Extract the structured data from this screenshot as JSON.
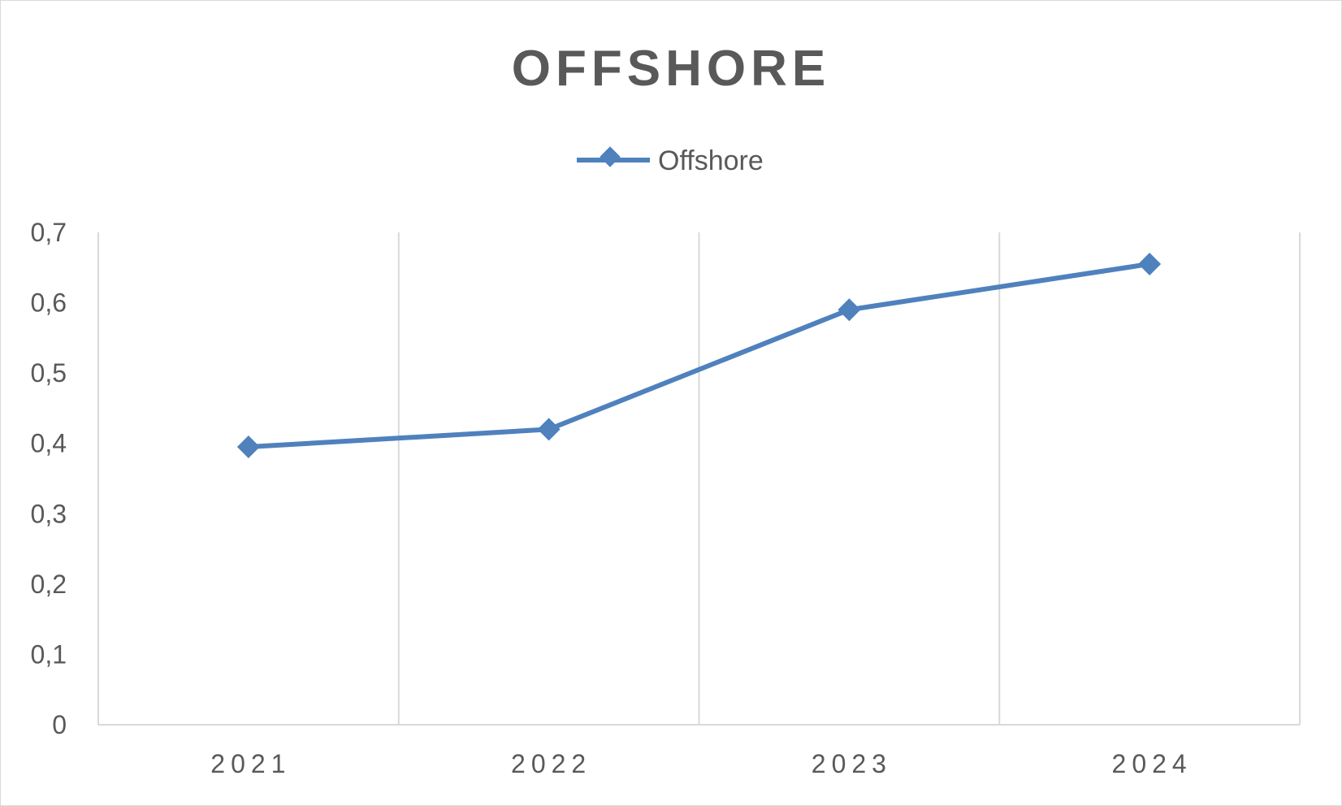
{
  "chart_data": {
    "type": "line",
    "title": "OFFSHORE",
    "categories": [
      "2021",
      "2022",
      "2023",
      "2024"
    ],
    "series": [
      {
        "name": "Offshore",
        "values": [
          0.395,
          0.42,
          0.59,
          0.655
        ],
        "color": "#4f81bd",
        "marker": "diamond"
      }
    ],
    "ylim": [
      0,
      0.7
    ],
    "yticks": [
      "0",
      "0,1",
      "0,2",
      "0,3",
      "0,4",
      "0,5",
      "0,6",
      "0,7"
    ],
    "xlabel": "",
    "ylabel": "",
    "grid": "vertical",
    "legend_position": "top"
  }
}
